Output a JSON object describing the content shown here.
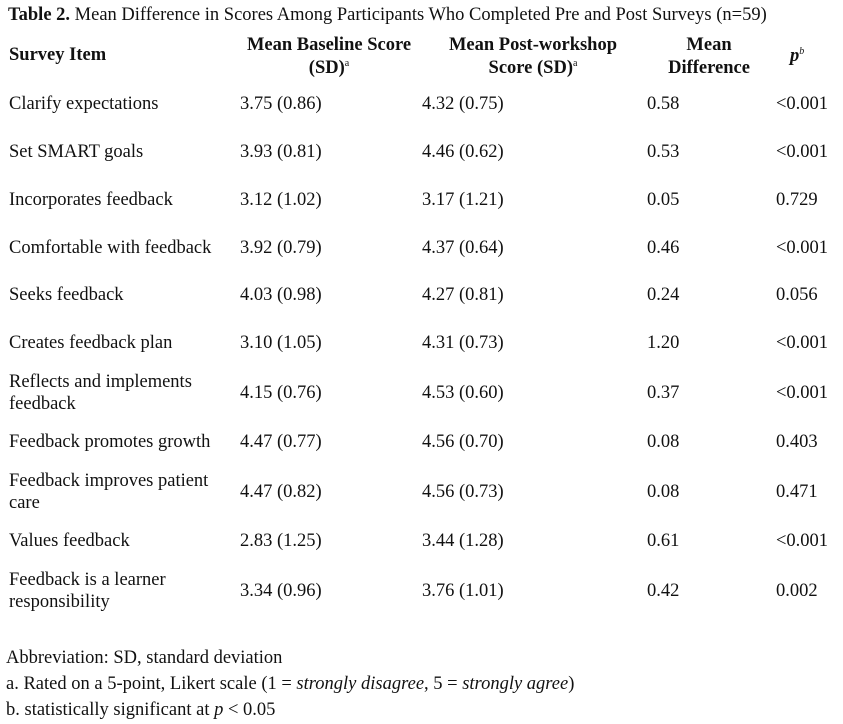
{
  "table": {
    "label": "Table 2.",
    "caption": "Mean Difference in Scores Among Participants Who Completed Pre and Post Surveys (n=59)",
    "headers": {
      "item": "Survey Item",
      "baseline_line1": "Mean Baseline Score",
      "baseline_line2": "(SD)",
      "baseline_sup": "a",
      "post_line1": "Mean Post-workshop",
      "post_line2": "Score (SD)",
      "post_sup": "a",
      "diff_line1": "Mean",
      "diff_line2": "Difference",
      "p": "p",
      "p_sup": "b"
    },
    "rows": [
      {
        "item": "Clarify expectations",
        "baseline": "3.75 (0.86)",
        "post": "4.32 (0.75)",
        "diff": "0.58",
        "p": "<0.001"
      },
      {
        "item": "Set SMART goals",
        "baseline": "3.93 (0.81)",
        "post": "4.46 (0.62)",
        "diff": "0.53",
        "p": "<0.001"
      },
      {
        "item": "Incorporates feedback",
        "baseline": "3.12 (1.02)",
        "post": "3.17 (1.21)",
        "diff": "0.05",
        "p": "0.729"
      },
      {
        "item": "Comfortable with feedback",
        "baseline": "3.92 (0.79)",
        "post": "4.37 (0.64)",
        "diff": "0.46",
        "p": "<0.001"
      },
      {
        "item": "Seeks feedback",
        "baseline": "4.03 (0.98)",
        "post": "4.27 (0.81)",
        "diff": "0.24",
        "p": "0.056"
      },
      {
        "item": "Creates feedback plan",
        "baseline": "3.10 (1.05)",
        "post": "4.31 (0.73)",
        "diff": "1.20",
        "p": "<0.001"
      },
      {
        "item": "Reflects and implements feedback",
        "baseline": "4.15 (0.76)",
        "post": "4.53 (0.60)",
        "diff": "0.37",
        "p": "<0.001"
      },
      {
        "item": "Feedback promotes growth",
        "baseline": "4.47 (0.77)",
        "post": "4.56 (0.70)",
        "diff": "0.08",
        "p": "0.403"
      },
      {
        "item": "Feedback improves patient care",
        "baseline": "4.47 (0.82)",
        "post": "4.56 (0.73)",
        "diff": "0.08",
        "p": "0.471"
      },
      {
        "item": "Values feedback",
        "baseline": "2.83 (1.25)",
        "post": "3.44 (1.28)",
        "diff": "0.61",
        "p": "<0.001"
      },
      {
        "item": "Feedback is a learner responsibility",
        "baseline": "3.34 (0.96)",
        "post": "3.76 (1.01)",
        "diff": "0.42",
        "p": "0.002"
      }
    ]
  },
  "notes": {
    "abbreviation": "Abbreviation: SD, standard deviation",
    "a_prefix": "a. Rated on a 5-point, Likert scale (1 = ",
    "a_low": "strongly disagree",
    "a_mid": ", 5 = ",
    "a_high": "strongly agree",
    "a_suffix": ")",
    "b_prefix": "b. statistically significant at ",
    "b_var": "p",
    "b_suffix": " < 0.05"
  }
}
